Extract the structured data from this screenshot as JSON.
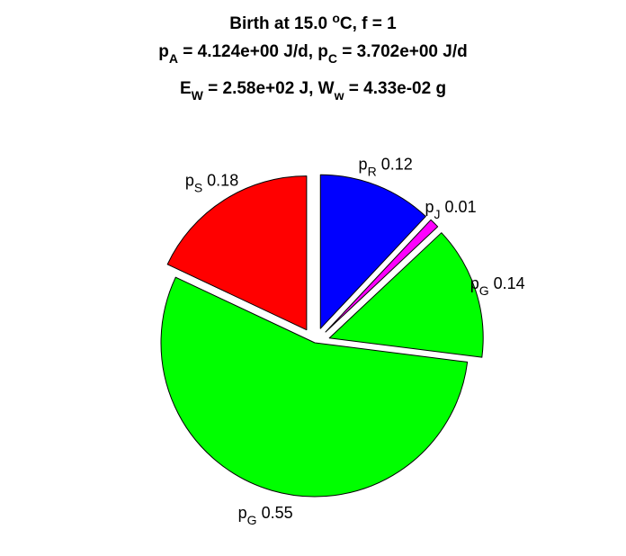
{
  "chart_data": {
    "type": "pie",
    "title_lines": [
      {
        "parts": [
          {
            "t": "Birth at 15.0 "
          },
          {
            "t": "o",
            "sup": true
          },
          {
            "t": "C, f = 1"
          }
        ]
      },
      {
        "parts": [
          {
            "t": "p"
          },
          {
            "t": "A",
            "sub": true
          },
          {
            "t": " = 4.124e+00 J/d, p"
          },
          {
            "t": "C",
            "sub": true
          },
          {
            "t": " = 3.702e+00 J/d"
          }
        ]
      },
      {
        "parts": [
          {
            "t": "E"
          },
          {
            "t": "W",
            "sub": true
          },
          {
            "t": " = 2.58e+02 J, W"
          },
          {
            "t": "w",
            "sub": true
          },
          {
            "t": " = 4.33e-02 g"
          }
        ]
      }
    ],
    "slices": [
      {
        "symbol": "p",
        "subscript": "R",
        "value": 0.12,
        "label_value": "0.12",
        "color": "#0000ff",
        "exploded": true
      },
      {
        "symbol": "p",
        "subscript": "J",
        "value": 0.01,
        "label_value": "0.01",
        "color": "#ff00ff",
        "exploded": true
      },
      {
        "symbol": "p",
        "subscript": "G",
        "value": 0.14,
        "label_value": "0.14",
        "color": "#00ff00",
        "exploded": true
      },
      {
        "symbol": "p",
        "subscript": "G",
        "value": 0.55,
        "label_value": "0.55",
        "color": "#00ff00",
        "exploded": false
      },
      {
        "symbol": "p",
        "subscript": "S",
        "value": 0.18,
        "label_value": "0.18",
        "color": "#ff0000",
        "exploded": true
      }
    ],
    "start_angle_deg": 90,
    "direction": "clockwise",
    "outline_color": "#000000"
  }
}
